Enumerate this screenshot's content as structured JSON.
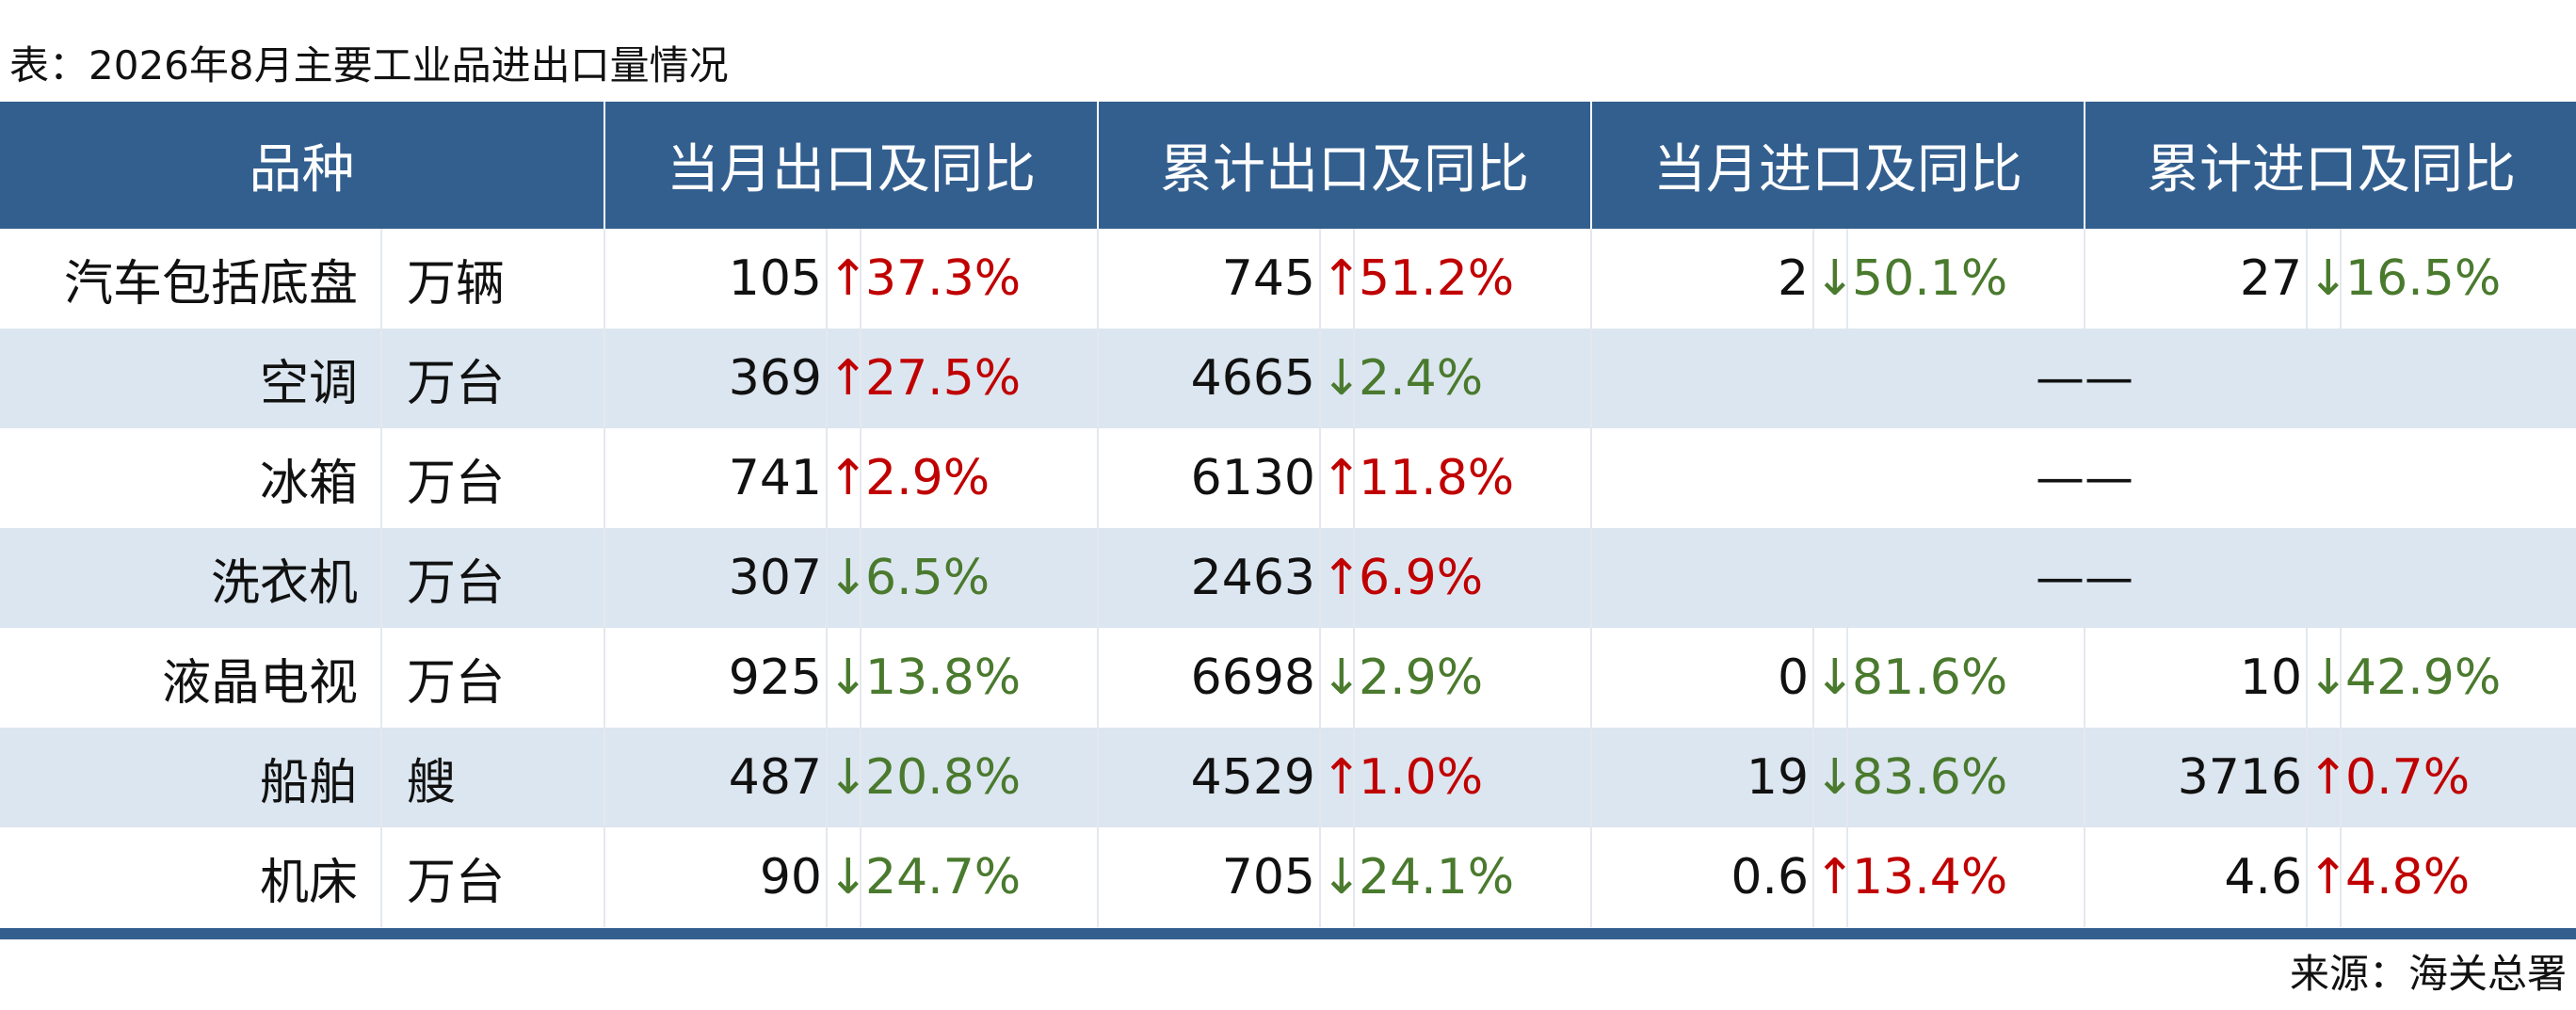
{
  "title": "表：2026年8月主要工业品进出口量情况",
  "table": {
    "headers": [
      "品种",
      "当月出口及同比",
      "累计出口及同比",
      "当月进口及同比",
      "累计进口及同比"
    ],
    "rows": [
      {
        "name": "汽车包括底盘",
        "unit": "万辆",
        "cells": [
          {
            "value": "105",
            "arrow": "↑",
            "change": "37.3%"
          },
          {
            "value": "745",
            "arrow": "↑",
            "change": "51.2%"
          },
          {
            "value": "2",
            "arrow": "↓",
            "change": "50.1%"
          },
          {
            "value": "27",
            "arrow": "↓",
            "change": "16.5%"
          }
        ]
      },
      {
        "name": "空调",
        "unit": "万台",
        "cells": [
          {
            "value": "369",
            "arrow": "↑",
            "change": "27.5%"
          },
          {
            "value": "4665",
            "arrow": "↓",
            "change": "2.4%"
          }
        ],
        "span_text": "——"
      },
      {
        "name": "冰箱",
        "unit": "万台",
        "cells": [
          {
            "value": "741",
            "arrow": "↑",
            "change": "2.9%"
          },
          {
            "value": "6130",
            "arrow": "↑",
            "change": "11.8%"
          }
        ],
        "span_text": "——"
      },
      {
        "name": "洗衣机",
        "unit": "万台",
        "cells": [
          {
            "value": "307",
            "arrow": "↓",
            "change": "6.5%"
          },
          {
            "value": "2463",
            "arrow": "↑",
            "change": "6.9%"
          }
        ],
        "span_text": "——"
      },
      {
        "name": "液晶电视",
        "unit": "万台",
        "cells": [
          {
            "value": "925",
            "arrow": "↓",
            "change": "13.8%"
          },
          {
            "value": "6698",
            "arrow": "↓",
            "change": "2.9%"
          },
          {
            "value": "0",
            "arrow": "↓",
            "change": "81.6%"
          },
          {
            "value": "10",
            "arrow": "↓",
            "change": "42.9%"
          }
        ]
      },
      {
        "name": "船舶",
        "unit": "艘",
        "cells": [
          {
            "value": "487",
            "arrow": "↓",
            "change": "20.8%"
          },
          {
            "value": "4529",
            "arrow": "↑",
            "change": "1.0%"
          },
          {
            "value": "19",
            "arrow": "↓",
            "change": "83.6%"
          },
          {
            "value": "3716",
            "arrow": "↑",
            "change": "0.7%"
          }
        ]
      },
      {
        "name": "机床",
        "unit": "万台",
        "cells": [
          {
            "value": "90",
            "arrow": "↓",
            "change": "24.7%"
          },
          {
            "value": "705",
            "arrow": "↓",
            "change": "24.1%"
          },
          {
            "value": "0.6",
            "arrow": "↑",
            "change": "13.4%"
          },
          {
            "value": "4.6",
            "arrow": "↑",
            "change": "4.8%"
          }
        ]
      }
    ]
  },
  "source": "来源：海关总署"
}
